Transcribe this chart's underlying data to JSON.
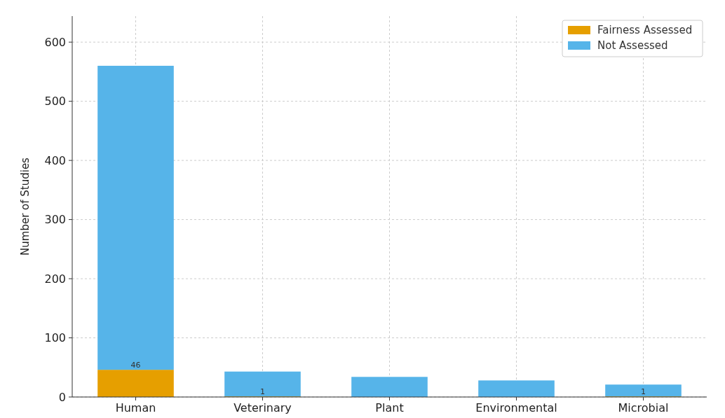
{
  "chart_data": {
    "type": "bar",
    "stacked": true,
    "ylabel": "Number of Studies",
    "categories": [
      "Human",
      "Veterinary",
      "Plant",
      "Environmental",
      "Microbial"
    ],
    "series": [
      {
        "name": "Fairness Assessed",
        "color": "#e69f00",
        "values": [
          46,
          1,
          0,
          0,
          1
        ],
        "value_labels": [
          "46",
          "1",
          null,
          null,
          "1"
        ]
      },
      {
        "name": "Not Assessed",
        "color": "#56b4e9",
        "values": [
          514,
          42,
          34,
          28,
          20
        ]
      }
    ],
    "ylim": [
      0,
      644
    ],
    "yticks": [
      0,
      100,
      200,
      300,
      400,
      500,
      600
    ],
    "grid": true,
    "legend": "top right"
  }
}
